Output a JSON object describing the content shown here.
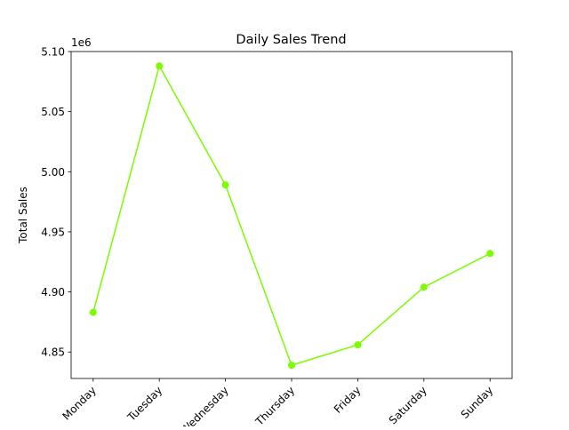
{
  "chart_data": {
    "type": "line",
    "title": "Daily Sales Trend",
    "xlabel": "",
    "ylabel": "Total Sales",
    "y_offset_text": "1e6",
    "y_scale_factor": 1000000,
    "ylim": [
      4.828,
      5.1
    ],
    "yticks": [
      4.85,
      4.9,
      4.95,
      5.0,
      5.05,
      5.1
    ],
    "ytick_labels": [
      "4.85",
      "4.90",
      "4.95",
      "5.00",
      "5.05",
      "5.10"
    ],
    "categories": [
      "Monday",
      "Tuesday",
      "Wednesday",
      "Thursday",
      "Friday",
      "Saturday",
      "Sunday"
    ],
    "series": [
      {
        "name": "",
        "values": [
          4.883,
          5.088,
          4.989,
          4.839,
          4.856,
          4.904,
          4.932
        ],
        "color": "#7cfc00",
        "marker": "circle"
      }
    ],
    "grid": false,
    "legend": "none"
  }
}
